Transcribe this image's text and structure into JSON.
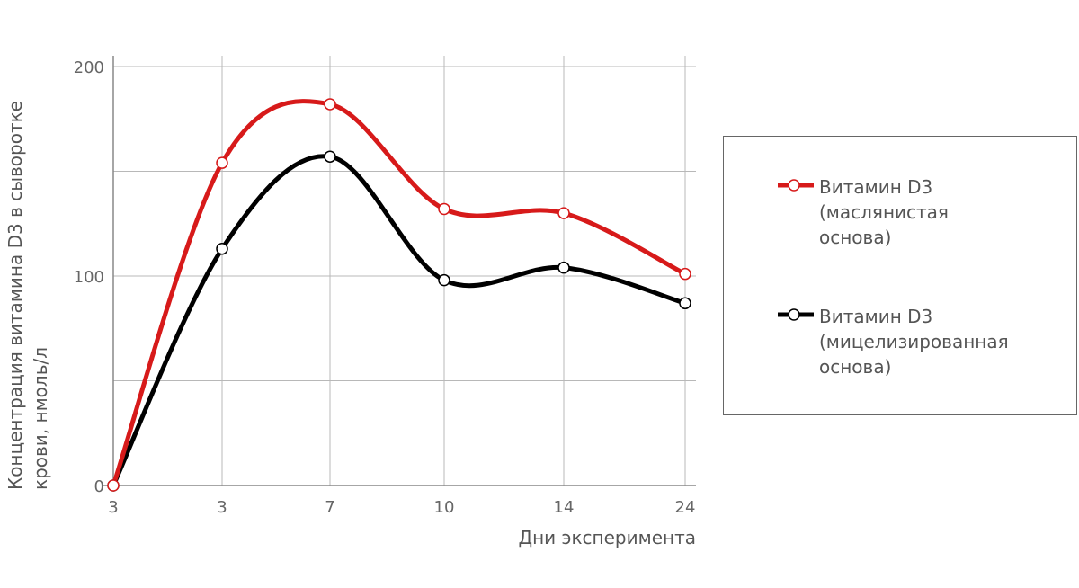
{
  "chart_data": {
    "type": "line",
    "categories": [
      "3",
      "3",
      "7",
      "10",
      "14",
      "24"
    ],
    "xlabel": "Дни эксперимента",
    "ylabel_lines": [
      "Концентрация витамина D3 в сыворотке",
      "крови, нмоль/л"
    ],
    "y_ticks": [
      "0",
      "100",
      "200"
    ],
    "ylim": [
      0,
      200
    ],
    "grid": true,
    "legend_position": "right",
    "series": [
      {
        "name_lines": [
          "Витамин D3",
          "(маслянистая",
          "основа)"
        ],
        "color": "#d71a1a",
        "values": [
          0,
          154,
          182,
          132,
          130,
          101
        ]
      },
      {
        "name_lines": [
          "Витамин D3",
          "(мицелизированная",
          "основа)"
        ],
        "color": "#000000",
        "values": [
          0,
          113,
          157,
          98,
          104,
          87
        ]
      }
    ]
  }
}
